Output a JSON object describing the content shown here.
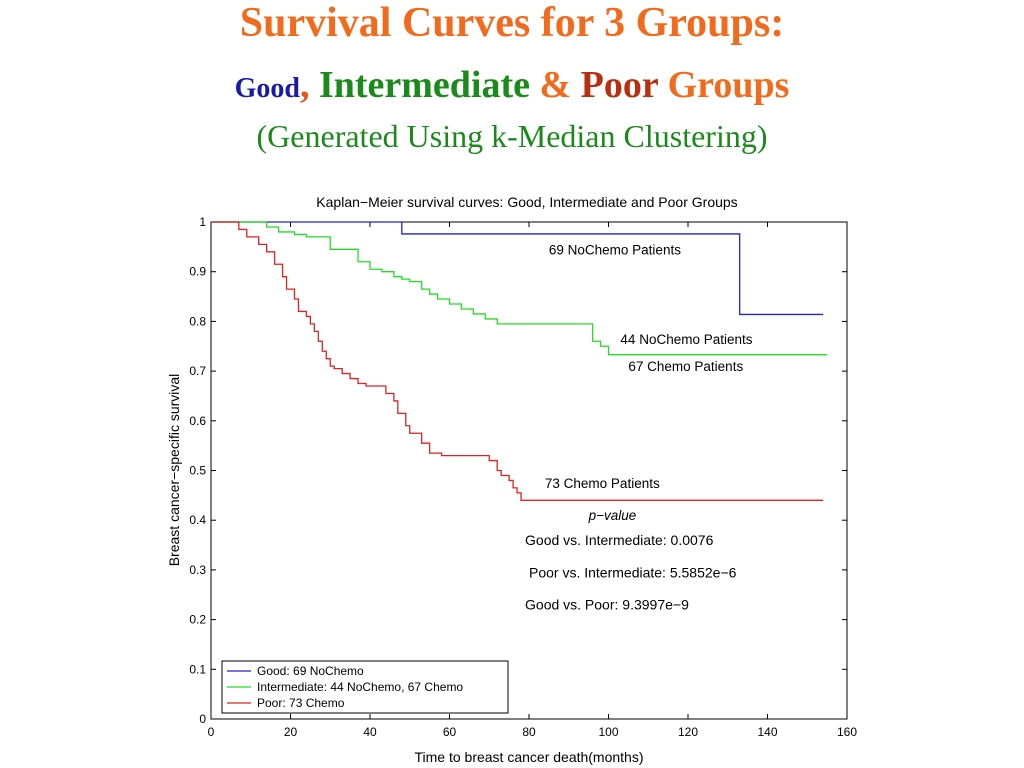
{
  "heading": {
    "line1": "Survival Curves for 3 Groups:",
    "good": "Good",
    "comma": ",",
    "intermediate": "Intermediate",
    "amp": "&",
    "poor": "Poor",
    "groups": "Groups",
    "line3": "(Generated Using k-Median Clustering)"
  },
  "colors": {
    "good": "#2222cc",
    "intermediate": "#22dd22",
    "poor": "#dd2222"
  },
  "chart_data": {
    "type": "line",
    "title": "Kaplan−Meier survival curves: Good, Intermediate and Poor Groups",
    "xlabel": "Time to breast cancer death(months)",
    "ylabel": "Breast cancer−specific survival",
    "xlim": [
      0,
      160
    ],
    "ylim": [
      0,
      1
    ],
    "xticks": [
      "0",
      "20",
      "40",
      "60",
      "80",
      "100",
      "120",
      "140",
      "160"
    ],
    "yticks": [
      "0",
      "0.1",
      "0.2",
      "0.3",
      "0.4",
      "0.5",
      "0.6",
      "0.7",
      "0.8",
      "0.9",
      "1"
    ],
    "grid": false,
    "legend_position": "bottom-left",
    "step": true,
    "series": [
      {
        "name": "Good: 69 NoChemo",
        "color": "#2222cc",
        "x": [
          0,
          48,
          132,
          133,
          154
        ],
        "y": [
          1.0,
          0.976,
          0.976,
          0.814,
          0.814
        ]
      },
      {
        "name": "Intermediate: 44 NoChemo, 67 Chemo",
        "color": "#22dd22",
        "x": [
          0,
          14,
          17,
          21,
          24,
          30,
          37,
          40,
          43,
          46,
          48,
          50,
          53,
          55,
          57,
          60,
          63,
          66,
          69,
          72,
          80,
          90,
          96,
          98,
          100,
          155
        ],
        "y": [
          1.0,
          0.99,
          0.98,
          0.975,
          0.97,
          0.945,
          0.92,
          0.905,
          0.9,
          0.89,
          0.885,
          0.88,
          0.865,
          0.855,
          0.845,
          0.835,
          0.825,
          0.815,
          0.805,
          0.795,
          0.795,
          0.795,
          0.76,
          0.75,
          0.733,
          0.733
        ]
      },
      {
        "name": "Poor: 73 Chemo",
        "color": "#dd2222",
        "x": [
          0,
          7,
          9,
          12,
          14,
          16,
          18,
          19,
          21,
          22,
          24,
          25,
          26,
          27,
          28,
          29,
          30,
          31,
          33,
          35,
          37,
          39,
          41,
          44,
          46,
          47,
          49,
          50,
          53,
          55,
          58,
          63,
          66,
          68,
          70,
          72,
          73,
          75,
          76,
          77,
          78,
          80,
          100,
          154
        ],
        "y": [
          1.0,
          0.985,
          0.97,
          0.955,
          0.94,
          0.915,
          0.89,
          0.865,
          0.845,
          0.82,
          0.81,
          0.795,
          0.78,
          0.76,
          0.74,
          0.725,
          0.71,
          0.705,
          0.695,
          0.685,
          0.675,
          0.67,
          0.67,
          0.655,
          0.64,
          0.615,
          0.59,
          0.575,
          0.555,
          0.535,
          0.53,
          0.53,
          0.53,
          0.53,
          0.52,
          0.5,
          0.49,
          0.48,
          0.465,
          0.455,
          0.44,
          0.44,
          0.44,
          0.44
        ]
      }
    ],
    "annotations": [
      {
        "text": "69 NoChemo Patients",
        "x": 85,
        "y": 0.935,
        "italic": false
      },
      {
        "text": "44 NoChemo Patients",
        "x": 103,
        "y": 0.755,
        "italic": false
      },
      {
        "text": "67 Chemo Patients",
        "x": 105,
        "y": 0.7,
        "italic": false
      },
      {
        "text": "73 Chemo Patients",
        "x": 84,
        "y": 0.465,
        "italic": false
      },
      {
        "text": "p−value",
        "x": 95,
        "y": 0.4,
        "italic": true
      },
      {
        "text": "Good vs. Intermediate: 0.0076",
        "x": 79,
        "y": 0.35,
        "italic": false
      },
      {
        "text": "Poor vs. Intermediate: 5.5852e−6",
        "x": 80,
        "y": 0.285,
        "italic": false
      },
      {
        "text": "Good vs. Poor: 9.3997e−9",
        "x": 79,
        "y": 0.22,
        "italic": false
      }
    ]
  }
}
